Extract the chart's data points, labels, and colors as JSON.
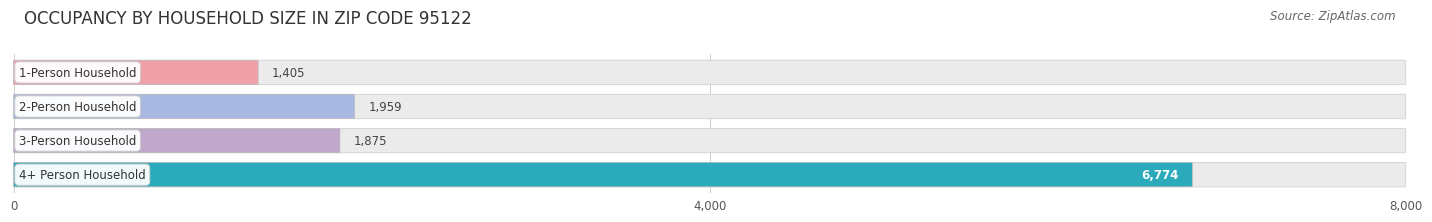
{
  "title": "OCCUPANCY BY HOUSEHOLD SIZE IN ZIP CODE 95122",
  "source": "Source: ZipAtlas.com",
  "categories": [
    "1-Person Household",
    "2-Person Household",
    "3-Person Household",
    "4+ Person Household"
  ],
  "values": [
    1405,
    1959,
    1875,
    6774
  ],
  "bar_colors": [
    "#f0a0a8",
    "#a8b8e0",
    "#c0a8cc",
    "#2aaabb"
  ],
  "label_colors": [
    "#444444",
    "#444444",
    "#444444",
    "#ffffff"
  ],
  "xlim": [
    0,
    8000
  ],
  "xticks": [
    0,
    4000,
    8000
  ],
  "background_color": "#ffffff",
  "bar_bg_color": "#ebebeb",
  "bar_bg_edge_color": "#d8d8d8",
  "title_fontsize": 12,
  "source_fontsize": 8.5,
  "label_fontsize": 8.5,
  "value_fontsize": 8.5
}
